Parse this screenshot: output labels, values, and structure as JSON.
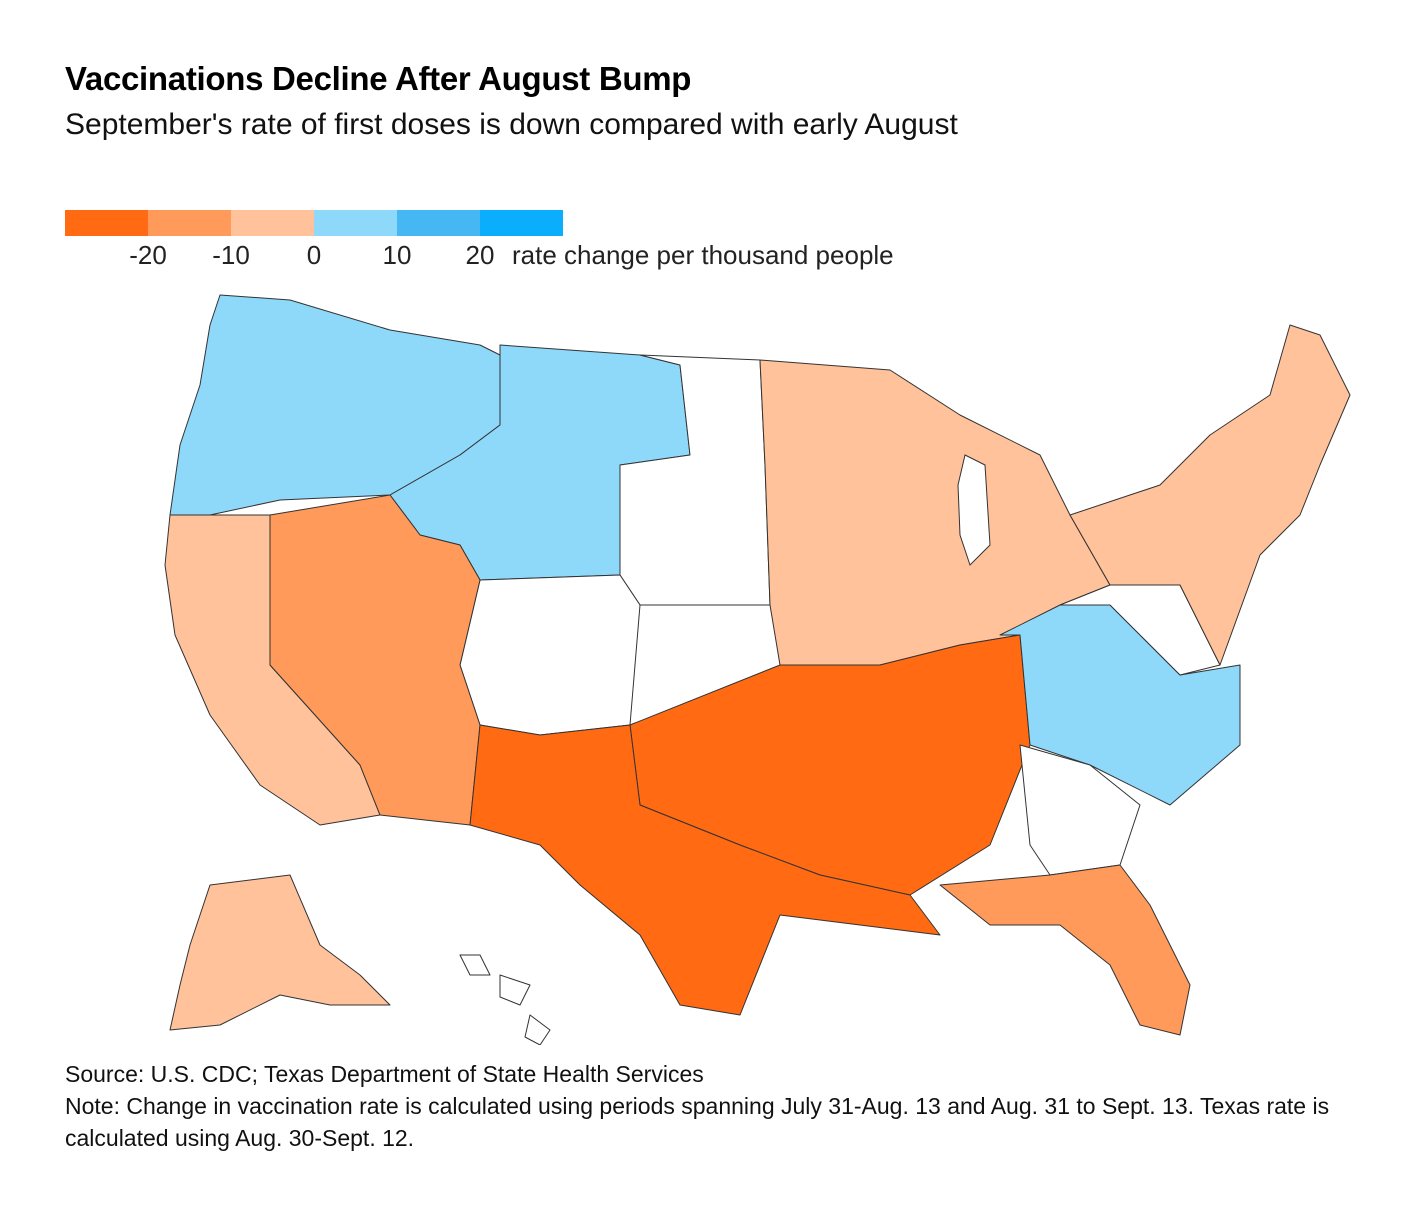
{
  "title": "Vaccinations Decline After August Bump",
  "subtitle": "September's rate of first doses is down compared with early August",
  "legend": {
    "colors": [
      "#ff6a13",
      "#ff9a5a",
      "#ffc29a",
      "#8ed8fa",
      "#45b8f3",
      "#0baefc"
    ],
    "ticks": [
      "-20",
      "-10",
      "0",
      "10",
      "20"
    ],
    "unit": "rate change per thousand people"
  },
  "source": "Source: U.S. CDC; Texas Department of State Health Services",
  "note": "Note: Change in vaccination rate is calculated using periods spanning July 31-Aug. 13 and Aug. 31 to Sept. 13. Texas rate is calculated using Aug. 30-Sept. 12.",
  "map": {
    "no_data_color": "#ffffff",
    "border_color": "#333333",
    "regions": [
      {
        "name": "pacific-northwest",
        "category": "10"
      },
      {
        "name": "northern-rockies",
        "category": "10"
      },
      {
        "name": "upper-plains",
        "category": "no-data"
      },
      {
        "name": "colorado",
        "category": "no-data"
      },
      {
        "name": "california",
        "category": "0"
      },
      {
        "name": "nevada-arizona",
        "category": "-10"
      },
      {
        "name": "midwest",
        "category": "0"
      },
      {
        "name": "south-central",
        "category": "-20"
      },
      {
        "name": "texas-gulf",
        "category": "-20"
      },
      {
        "name": "appalachia-carolinas",
        "category": "10"
      },
      {
        "name": "virginia",
        "category": "no-data"
      },
      {
        "name": "georgia",
        "category": "no-data"
      },
      {
        "name": "florida",
        "category": "-10"
      },
      {
        "name": "northeast",
        "category": "0"
      },
      {
        "name": "alaska",
        "category": "0"
      },
      {
        "name": "hawaii",
        "category": "no-data"
      }
    ]
  }
}
